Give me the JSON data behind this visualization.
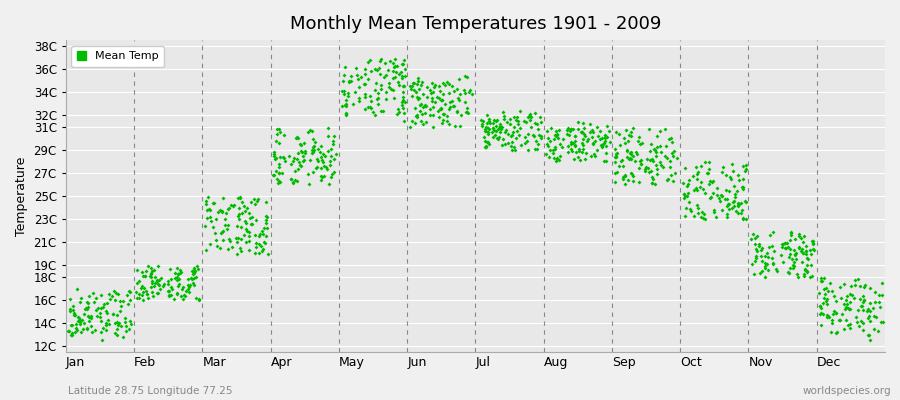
{
  "title": "Monthly Mean Temperatures 1901 - 2009",
  "ylabel": "Temperature",
  "xlabel_bottom_left": "Latitude 28.75 Longitude 77.25",
  "xlabel_bottom_right": "worldspecies.org",
  "legend_label": "Mean Temp",
  "dot_color": "#00bb00",
  "background_color": "#f0f0f0",
  "plot_bg_color": "#e8e8e8",
  "grid_color": "#ffffff",
  "ytick_labels": [
    "12C",
    "14C",
    "16C",
    "18C",
    "19C",
    "21C",
    "23C",
    "25C",
    "27C",
    "29C",
    "31C",
    "32C",
    "34C",
    "36C",
    "38C"
  ],
  "ytick_values": [
    12,
    14,
    16,
    18,
    19,
    21,
    23,
    25,
    27,
    29,
    31,
    32,
    34,
    36,
    38
  ],
  "ylim": [
    11.5,
    38.5
  ],
  "months": [
    "Jan",
    "Feb",
    "Mar",
    "Apr",
    "May",
    "Jun",
    "Jul",
    "Aug",
    "Sep",
    "Oct",
    "Nov",
    "Dec"
  ],
  "mean_temps_by_month": {
    "Jan": [
      13.2,
      13.5,
      14.0,
      13.8,
      14.5,
      14.2,
      13.0,
      12.8,
      15.0,
      14.8,
      13.3,
      16.0,
      15.5,
      14.3,
      13.9,
      14.1,
      13.6,
      12.5,
      16.2,
      15.8,
      14.9,
      13.4,
      15.2,
      13.7,
      14.6,
      16.5,
      13.2,
      15.3,
      14.0,
      13.8,
      15.7,
      14.4,
      13.1,
      16.8,
      14.2,
      15.9,
      13.5,
      14.7,
      16.3,
      15.1,
      13.9,
      14.5,
      15.0,
      13.3,
      14.8,
      16.1,
      14.6,
      13.2,
      15.4,
      14.3,
      16.7,
      13.8,
      15.6,
      14.1,
      13.4,
      16.4,
      14.9,
      15.8,
      13.0,
      14.2,
      16.6,
      15.2,
      13.7,
      14.4,
      15.3,
      13.6,
      16.9,
      14.0,
      15.5,
      13.9,
      14.7,
      16.2,
      13.3,
      15.0,
      14.8,
      16.0,
      13.5,
      15.1,
      14.6,
      13.2,
      15.9,
      14.3,
      16.3,
      13.8,
      15.7,
      14.5,
      13.1,
      16.5,
      14.4,
      15.3,
      13.6,
      16.8,
      14.1,
      15.6,
      13.0,
      14.9,
      16.4,
      13.4,
      15.2,
      14.7,
      16.1,
      13.9,
      15.4,
      14.2,
      13.7,
      14.0,
      15.8,
      16.6,
      13.5
    ],
    "Feb": [
      17.0,
      17.5,
      16.8,
      18.0,
      17.3,
      16.5,
      18.5,
      17.8,
      16.2,
      18.2,
      17.1,
      16.9,
      18.8,
      17.6,
      16.0,
      18.3,
      17.4,
      16.7,
      17.9,
      18.6,
      16.3,
      17.2,
      18.1,
      17.0,
      16.6,
      18.9,
      17.7,
      16.4,
      18.4,
      17.3,
      16.1,
      18.7,
      17.5,
      16.8,
      18.0,
      17.2,
      16.5,
      18.3,
      17.6,
      16.2,
      18.6,
      17.9,
      16.7,
      18.1,
      17.4,
      16.0,
      18.5,
      17.8,
      16.3,
      18.2,
      17.1,
      16.9,
      18.8,
      17.7,
      16.4,
      18.4,
      17.3,
      16.6,
      18.9,
      17.6,
      16.1,
      18.3,
      17.5,
      16.8,
      18.0,
      17.2,
      16.5,
      18.6,
      17.9,
      16.2,
      18.1,
      17.4,
      16.7,
      18.5,
      17.8,
      16.3,
      18.2,
      17.1,
      16.9,
      18.7,
      17.6,
      16.4,
      18.4,
      17.3,
      16.6,
      18.9,
      17.7,
      16.1,
      18.3,
      17.5,
      16.8,
      18.0,
      17.2,
      16.5,
      18.6,
      17.9,
      16.2,
      18.1,
      17.4,
      16.7,
      18.5,
      17.8,
      16.3,
      18.2,
      17.1,
      16.9,
      18.8,
      17.6,
      16.4
    ],
    "Mar": [
      21.0,
      21.5,
      22.0,
      21.3,
      20.8,
      22.5,
      21.8,
      20.5,
      22.2,
      21.1,
      20.2,
      22.8,
      21.6,
      20.0,
      22.3,
      21.4,
      20.7,
      22.6,
      21.9,
      20.3,
      22.1,
      21.2,
      20.9,
      22.9,
      21.7,
      20.4,
      22.4,
      21.0,
      20.6,
      22.7,
      21.5,
      20.1,
      22.0,
      21.3,
      20.8,
      22.5,
      21.8,
      20.5,
      22.2,
      21.1,
      20.2,
      22.8,
      21.6,
      20.0,
      22.3,
      21.4,
      20.7,
      22.6,
      21.9,
      20.3,
      22.1,
      21.2,
      20.9,
      22.9,
      21.7,
      20.4,
      22.4,
      21.0,
      20.6,
      22.7,
      21.5,
      20.1,
      22.0,
      23.5,
      24.0,
      23.2,
      24.5,
      23.8,
      24.2,
      23.0,
      24.8,
      23.5,
      24.3,
      23.1,
      24.6,
      23.9,
      24.4,
      23.3,
      24.7,
      23.6,
      24.1,
      23.8,
      24.9,
      23.4,
      24.0,
      23.7,
      24.5,
      23.2,
      24.8,
      23.0,
      24.3,
      23.6,
      24.1,
      23.9,
      24.6,
      23.3,
      24.7,
      23.5,
      24.2,
      23.0,
      24.4,
      23.8,
      24.9,
      23.1,
      24.0,
      23.7,
      24.5,
      23.2,
      24.8
    ],
    "Apr": [
      29.0,
      29.5,
      28.5,
      30.0,
      29.3,
      28.8,
      30.5,
      29.8,
      28.2,
      30.2,
      29.1,
      28.0,
      30.8,
      29.6,
      28.5,
      30.3,
      29.4,
      28.7,
      30.6,
      29.9,
      28.3,
      30.1,
      29.2,
      28.9,
      30.9,
      29.7,
      28.4,
      30.4,
      29.0,
      28.6,
      30.7,
      29.5,
      28.1,
      30.0,
      29.3,
      28.8,
      30.5,
      29.8,
      28.2,
      30.2,
      29.1,
      28.0,
      30.8,
      29.6,
      28.5,
      27.0,
      27.5,
      26.5,
      28.0,
      27.3,
      26.8,
      28.5,
      27.8,
      26.2,
      28.2,
      27.1,
      26.0,
      28.8,
      27.6,
      26.5,
      28.3,
      27.4,
      26.7,
      28.6,
      27.9,
      26.3,
      28.1,
      27.2,
      26.9,
      28.9,
      27.7,
      26.4,
      28.4,
      27.0,
      26.6,
      28.7,
      27.5,
      26.1,
      28.0,
      27.3,
      26.8,
      28.5,
      27.8,
      26.2,
      28.2,
      27.1,
      26.0,
      28.8,
      27.6,
      26.5,
      28.3,
      27.4,
      26.7,
      28.6,
      27.9,
      26.3,
      28.1,
      27.2,
      26.9,
      28.9,
      27.7,
      26.4,
      28.4,
      27.0,
      26.6,
      28.7,
      27.5,
      26.1,
      28.0
    ],
    "May": [
      33.0,
      33.5,
      34.0,
      33.3,
      32.8,
      34.5,
      33.8,
      32.5,
      34.2,
      33.1,
      32.2,
      34.8,
      33.6,
      32.0,
      34.3,
      33.4,
      32.7,
      34.6,
      33.9,
      32.3,
      34.1,
      33.2,
      32.9,
      34.9,
      33.7,
      32.4,
      34.4,
      33.0,
      32.6,
      34.7,
      33.5,
      32.1,
      34.0,
      33.3,
      32.8,
      34.5,
      33.8,
      32.5,
      34.2,
      33.1,
      32.2,
      34.8,
      33.6,
      32.0,
      34.3,
      33.4,
      32.7,
      34.6,
      33.9,
      32.3,
      34.1,
      33.2,
      32.9,
      34.9,
      33.7,
      32.4,
      34.4,
      33.0,
      32.6,
      34.7,
      33.5,
      32.1,
      34.0,
      31.5,
      35.5,
      36.0,
      35.3,
      35.8,
      36.5,
      35.0,
      35.6,
      36.2,
      35.4,
      35.9,
      36.7,
      35.1,
      35.7,
      36.3,
      35.5,
      35.0,
      36.0,
      35.2,
      36.8,
      35.4,
      36.1,
      35.6,
      36.4,
      35.3,
      36.9,
      35.8,
      36.6,
      35.1,
      36.2,
      35.7,
      36.5,
      35.4,
      36.0,
      35.9,
      36.7,
      35.2,
      36.3,
      35.5,
      36.8,
      35.0,
      36.4,
      35.6,
      36.1,
      35.3,
      36.9
    ],
    "Jun": [
      33.5,
      34.0,
      34.5,
      33.8,
      33.3,
      34.8,
      34.2,
      33.0,
      34.6,
      33.9,
      33.1,
      35.0,
      34.3,
      33.5,
      34.7,
      34.1,
      33.8,
      35.2,
      34.5,
      33.2,
      34.9,
      34.4,
      33.6,
      35.3,
      34.8,
      33.3,
      35.1,
      34.6,
      33.9,
      35.4,
      34.2,
      33.5,
      34.0,
      33.3,
      32.8,
      34.5,
      33.8,
      32.5,
      34.2,
      33.1,
      32.2,
      34.8,
      33.6,
      32.0,
      34.3,
      33.4,
      32.7,
      34.6,
      33.9,
      32.3,
      34.1,
      33.2,
      32.9,
      34.9,
      33.7,
      32.4,
      34.4,
      33.0,
      32.6,
      34.7,
      33.5,
      32.1,
      34.0,
      33.3,
      32.8,
      34.5,
      33.8,
      32.5,
      34.2,
      33.1,
      32.2,
      34.8,
      33.6,
      32.0,
      34.3,
      31.5,
      32.7,
      31.0,
      32.5,
      31.2,
      32.0,
      31.8,
      32.3,
      31.5,
      32.8,
      31.1,
      32.6,
      31.3,
      32.1,
      31.9,
      32.4,
      31.6,
      32.9,
      31.4,
      32.7,
      31.0,
      32.5,
      31.2,
      32.0,
      31.8,
      32.3,
      31.5,
      32.8,
      31.1,
      32.6,
      31.3,
      32.1,
      31.9,
      32.4
    ],
    "Jul": [
      30.5,
      31.0,
      31.5,
      30.8,
      30.3,
      31.8,
      31.2,
      30.0,
      31.6,
      30.9,
      30.1,
      32.0,
      31.3,
      30.5,
      31.7,
      31.1,
      30.8,
      32.2,
      31.5,
      30.2,
      31.9,
      31.4,
      30.6,
      32.3,
      31.8,
      30.3,
      32.1,
      31.6,
      30.9,
      32.4,
      31.2,
      30.5,
      31.0,
      30.3,
      29.8,
      31.5,
      30.8,
      29.5,
      31.2,
      30.1,
      29.2,
      31.8,
      30.6,
      29.0,
      31.3,
      30.4,
      29.7,
      31.6,
      30.9,
      29.3,
      31.1,
      30.2,
      29.9,
      31.9,
      30.7,
      29.4,
      31.4,
      30.0,
      29.6,
      31.7,
      30.5,
      29.1,
      31.0,
      30.3,
      29.8,
      31.5,
      30.8,
      29.5,
      31.2,
      30.1,
      29.2,
      31.8,
      30.6,
      29.0,
      31.3,
      30.4,
      29.7,
      31.6,
      30.9,
      29.3,
      31.1,
      30.2,
      29.9,
      31.9,
      30.7,
      29.4,
      31.4,
      30.0,
      29.6,
      31.7,
      30.5,
      29.1,
      31.0,
      30.3,
      29.8,
      31.5,
      30.8,
      29.5,
      31.2,
      30.1,
      29.2,
      31.8,
      30.6,
      29.0,
      31.3,
      30.4,
      29.7,
      31.6,
      30.9
    ],
    "Aug": [
      29.5,
      30.0,
      30.5,
      29.8,
      29.3,
      30.8,
      30.2,
      29.0,
      30.6,
      29.9,
      29.1,
      31.0,
      30.3,
      29.5,
      30.7,
      30.1,
      29.8,
      31.2,
      30.5,
      29.2,
      30.9,
      30.4,
      29.6,
      31.3,
      30.8,
      29.3,
      31.1,
      30.6,
      29.9,
      31.4,
      30.2,
      29.5,
      30.0,
      29.3,
      28.8,
      30.5,
      29.8,
      28.5,
      30.2,
      29.1,
      28.2,
      30.8,
      29.6,
      28.0,
      30.3,
      29.4,
      28.7,
      30.6,
      29.9,
      28.3,
      30.1,
      29.2,
      28.9,
      30.9,
      29.7,
      28.4,
      30.4,
      29.0,
      28.6,
      30.7,
      29.5,
      28.1,
      30.0,
      29.3,
      28.8,
      30.5,
      29.8,
      28.5,
      30.2,
      29.1,
      28.2,
      30.8,
      29.6,
      28.0,
      30.3,
      29.4,
      28.7,
      30.6,
      29.9,
      28.3,
      30.1,
      29.2,
      28.9,
      30.9,
      29.7,
      28.4,
      30.4,
      29.0,
      28.6,
      30.7,
      29.5,
      28.1,
      30.0,
      29.3,
      28.8,
      30.5,
      29.8,
      28.5,
      30.2,
      29.1,
      28.2,
      30.8,
      29.6,
      28.0,
      30.3,
      29.4,
      28.7,
      30.6,
      29.9
    ],
    "Sep": [
      29.0,
      29.5,
      28.5,
      30.0,
      29.3,
      28.8,
      30.5,
      29.8,
      28.2,
      30.2,
      29.1,
      28.0,
      30.8,
      29.6,
      28.5,
      30.3,
      29.4,
      28.7,
      30.6,
      29.9,
      28.3,
      30.1,
      29.2,
      28.9,
      30.9,
      29.7,
      28.4,
      30.4,
      29.0,
      28.6,
      30.7,
      29.5,
      28.1,
      30.0,
      29.3,
      28.8,
      30.5,
      29.8,
      28.2,
      30.2,
      29.1,
      28.0,
      30.8,
      29.6,
      28.5,
      27.0,
      27.5,
      26.5,
      28.0,
      27.3,
      26.8,
      28.5,
      27.8,
      26.2,
      28.2,
      27.1,
      26.0,
      28.8,
      27.6,
      26.5,
      28.3,
      27.4,
      26.7,
      28.6,
      27.9,
      26.3,
      28.1,
      27.2,
      26.9,
      28.9,
      27.7,
      26.4,
      28.4,
      27.0,
      26.6,
      28.7,
      27.5,
      26.1,
      28.0,
      27.3,
      26.8,
      28.5,
      27.8,
      26.2,
      28.2,
      27.1,
      26.0,
      28.8,
      27.6,
      26.5,
      28.3,
      27.4,
      26.7,
      28.6,
      27.9,
      26.3,
      28.1,
      27.2,
      26.9,
      28.9,
      27.7,
      26.4,
      28.4,
      27.0,
      26.6,
      28.7,
      27.5,
      26.1,
      28.0
    ],
    "Oct": [
      24.0,
      24.5,
      25.0,
      24.3,
      23.8,
      25.5,
      24.8,
      23.5,
      25.2,
      24.1,
      23.2,
      25.8,
      24.6,
      23.0,
      25.3,
      24.4,
      23.7,
      25.6,
      24.9,
      23.3,
      25.1,
      24.2,
      23.9,
      25.9,
      24.7,
      23.4,
      25.4,
      24.0,
      23.6,
      25.7,
      24.5,
      23.1,
      25.0,
      24.3,
      23.8,
      25.5,
      24.8,
      23.5,
      25.2,
      24.1,
      23.2,
      25.8,
      24.6,
      23.0,
      25.3,
      24.4,
      23.7,
      25.6,
      24.9,
      23.3,
      25.1,
      24.2,
      23.9,
      25.9,
      24.7,
      23.4,
      25.4,
      24.0,
      23.6,
      25.7,
      24.5,
      23.1,
      25.0,
      24.3,
      23.8,
      25.5,
      24.8,
      23.5,
      25.2,
      24.1,
      23.2,
      25.8,
      24.6,
      23.0,
      25.3,
      26.5,
      27.0,
      26.3,
      27.5,
      26.8,
      27.2,
      27.8,
      26.0,
      27.3,
      26.6,
      27.1,
      26.4,
      27.9,
      26.2,
      27.6,
      26.9,
      27.4,
      26.1,
      27.7,
      26.3,
      27.0,
      26.8,
      27.5,
      26.5,
      27.2,
      26.0,
      27.9,
      26.4,
      27.6,
      26.2,
      27.1,
      26.7,
      27.3,
      26.5
    ],
    "Nov": [
      19.0,
      19.5,
      20.0,
      19.3,
      18.8,
      20.5,
      19.8,
      18.5,
      20.2,
      19.1,
      18.2,
      20.8,
      19.6,
      18.0,
      20.3,
      19.4,
      18.7,
      20.6,
      19.9,
      18.3,
      20.1,
      19.2,
      18.9,
      20.9,
      19.7,
      18.4,
      20.4,
      19.0,
      18.6,
      20.7,
      19.5,
      18.1,
      20.0,
      19.3,
      18.8,
      20.5,
      19.8,
      18.5,
      20.2,
      19.1,
      18.2,
      20.8,
      19.6,
      18.0,
      20.3,
      19.4,
      18.7,
      20.6,
      19.9,
      18.3,
      20.1,
      19.2,
      18.9,
      20.9,
      19.7,
      18.4,
      20.4,
      19.0,
      18.6,
      20.7,
      19.5,
      18.1,
      20.0,
      19.3,
      18.8,
      20.5,
      19.8,
      18.5,
      20.2,
      19.1,
      18.2,
      20.8,
      19.6,
      18.0,
      20.3,
      21.0,
      21.5,
      20.8,
      21.3,
      20.6,
      21.2,
      20.4,
      21.8,
      20.1,
      21.6,
      20.9,
      21.4,
      20.2,
      21.7,
      20.5,
      21.1,
      20.7,
      21.9,
      20.3,
      21.5,
      20.0,
      21.3,
      20.8,
      21.6,
      20.1,
      21.4,
      20.6,
      21.9,
      20.4,
      21.7,
      20.2,
      21.1,
      20.9,
      21.5
    ],
    "Dec": [
      14.5,
      15.0,
      15.5,
      14.8,
      14.3,
      15.8,
      15.2,
      14.0,
      15.6,
      14.9,
      14.1,
      16.0,
      15.3,
      14.5,
      15.7,
      15.1,
      14.8,
      16.2,
      15.5,
      14.2,
      15.9,
      15.4,
      14.6,
      16.3,
      15.8,
      14.3,
      16.1,
      15.6,
      14.9,
      16.4,
      15.2,
      14.5,
      15.0,
      14.3,
      13.8,
      15.5,
      14.8,
      13.5,
      15.2,
      14.1,
      13.2,
      15.8,
      14.6,
      13.0,
      15.3,
      14.4,
      13.7,
      15.6,
      14.9,
      13.3,
      15.1,
      14.2,
      13.9,
      15.9,
      14.7,
      13.4,
      15.4,
      14.0,
      13.6,
      15.7,
      14.5,
      13.1,
      15.0,
      14.3,
      13.8,
      15.5,
      14.8,
      13.5,
      15.2,
      14.1,
      13.2,
      15.8,
      14.6,
      13.0,
      15.3,
      16.5,
      17.0,
      16.3,
      17.5,
      16.8,
      17.2,
      17.8,
      16.0,
      17.3,
      16.6,
      17.1,
      16.4,
      17.9,
      16.2,
      17.6,
      16.9,
      17.4,
      16.1,
      17.7,
      16.3,
      17.0,
      16.8,
      17.5,
      16.5,
      17.2,
      16.0,
      17.9,
      16.4,
      17.6,
      16.2,
      17.1,
      16.7,
      17.3,
      12.5
    ]
  }
}
